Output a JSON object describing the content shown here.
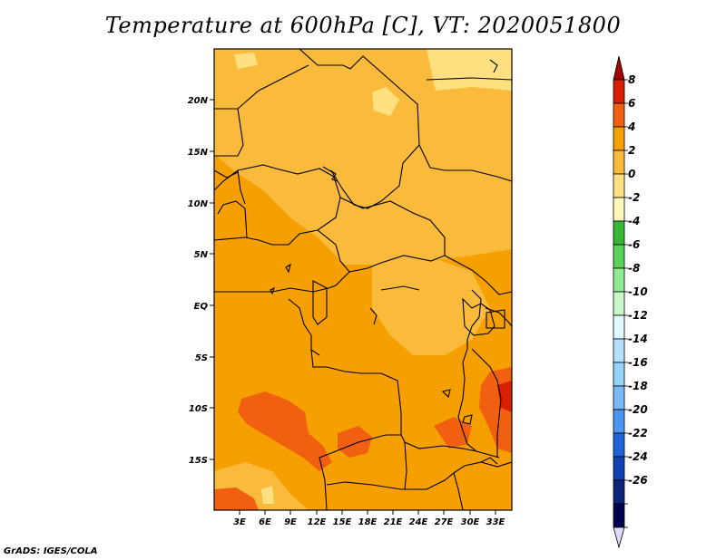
{
  "title": "Temperature at 600hPa [C], VT: 2020051800",
  "credit": "GrADS: IGES/COLA",
  "map": {
    "lon_ticks": [
      "3E",
      "6E",
      "9E",
      "12E",
      "15E",
      "18E",
      "21E",
      "24E",
      "27E",
      "30E",
      "33E"
    ],
    "lat_ticks": [
      "20N",
      "15N",
      "10N",
      "5N",
      "EQ",
      "5S",
      "10S",
      "15S"
    ]
  },
  "colorbar": {
    "levels": [
      "8",
      "6",
      "4",
      "2",
      "0",
      "-2",
      "-4",
      "-6",
      "-8",
      "-10",
      "-12",
      "-14",
      "-16",
      "-18",
      "-20",
      "-22",
      "-24",
      "-26"
    ],
    "colors": [
      "#a00000",
      "#d62000",
      "#f06010",
      "#f5a000",
      "#fabb3c",
      "#ffe080",
      "#fff8b8",
      "#36b836",
      "#5ad25a",
      "#90ec90",
      "#c8f8c8",
      "#e0f8ff",
      "#b4e0fc",
      "#96d2fa",
      "#78b9f7",
      "#4b96f0",
      "#1e64d8",
      "#1040b4",
      "#0a2478",
      "#000050",
      "#dcdcf8"
    ]
  }
}
